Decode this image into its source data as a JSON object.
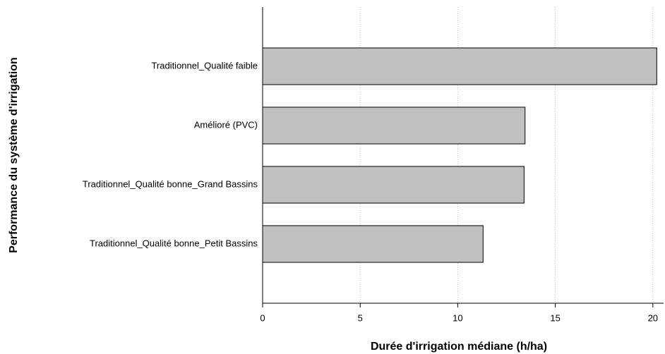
{
  "chart_data": {
    "type": "hbar",
    "categories": [
      "Traditionnel_Qualité faible",
      "Amélioré (PVC)",
      "Traditionnel_Qualité bonne_Grand Bassins",
      "Traditionnel_Qualité bonne_Petit Bassins"
    ],
    "values": [
      20.2,
      13.45,
      13.4,
      11.3
    ],
    "color": "#c0c0c0",
    "xlabel": "Durée d'irrigation médiane (h/ha)",
    "ylabel": "Performance du système d'irrigation",
    "xlim": [
      0,
      20.55
    ],
    "xticks": [
      0,
      5,
      10,
      15,
      20
    ],
    "grid": true
  }
}
